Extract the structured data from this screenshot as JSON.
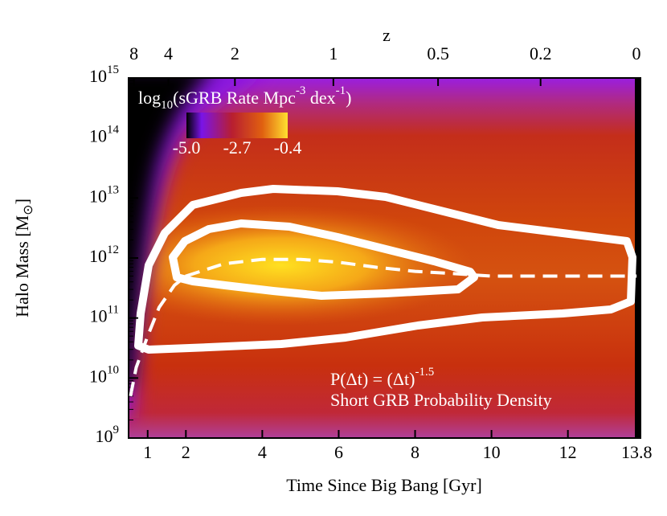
{
  "chart_data": {
    "type": "heatmap",
    "xlabel": "Time Since Big Bang [Gyr]",
    "ylabel": [
      "Halo Mass [M",
      "⊙",
      "]"
    ],
    "x2label": "z",
    "xlim": [
      0.5,
      13.9
    ],
    "xticks": [
      1,
      2,
      4,
      6,
      8,
      10,
      12,
      13.8
    ],
    "x2ticks": [
      8,
      4,
      2,
      1,
      0.5,
      0.2,
      0
    ],
    "ylim": [
      1000000000,
      1000000000000000
    ],
    "log_y": true,
    "yticks": [
      {
        "value": 1000000000,
        "label": "10",
        "sup": "9"
      },
      {
        "value": 10000000000,
        "label": "10",
        "sup": "10"
      },
      {
        "value": 100000000000,
        "label": "10",
        "sup": "11"
      },
      {
        "value": 1000000000000,
        "label": "10",
        "sup": "12"
      },
      {
        "value": 10000000000000,
        "label": "10",
        "sup": "13"
      },
      {
        "value": 100000000000000,
        "label": "10",
        "sup": "14"
      },
      {
        "value": 1000000000000000,
        "label": "10",
        "sup": "15"
      }
    ],
    "colorbar_label": [
      "log",
      "10",
      "(sGRB Rate Mpc",
      "-3",
      " dex",
      "-1",
      ")"
    ],
    "colorbar_ticks": [
      {
        "value": -5,
        "label": "-5.0"
      },
      -2.7,
      -0.4
    ],
    "annotation": [
      "P(Δt) = (Δt)",
      "-1.5",
      "Short GRB Probability Density"
    ],
    "series": [
      {
        "color": "#ffffff",
        "dashed": true,
        "x": [
          0.55,
          0.7,
          1,
          1.3,
          1.7,
          2,
          3,
          4,
          5,
          6,
          7,
          8,
          9,
          10,
          11,
          12,
          13,
          13.8
        ],
        "values": [
          5000000000,
          15000000000,
          50000000000,
          150000000000,
          350000000000,
          500000000000,
          800000000000,
          950000000000,
          950000000000,
          850000000000,
          700000000000,
          600000000000,
          550000000000,
          500000000000,
          500000000000,
          500000000000,
          500000000000,
          500000000000
        ]
      }
    ]
  }
}
